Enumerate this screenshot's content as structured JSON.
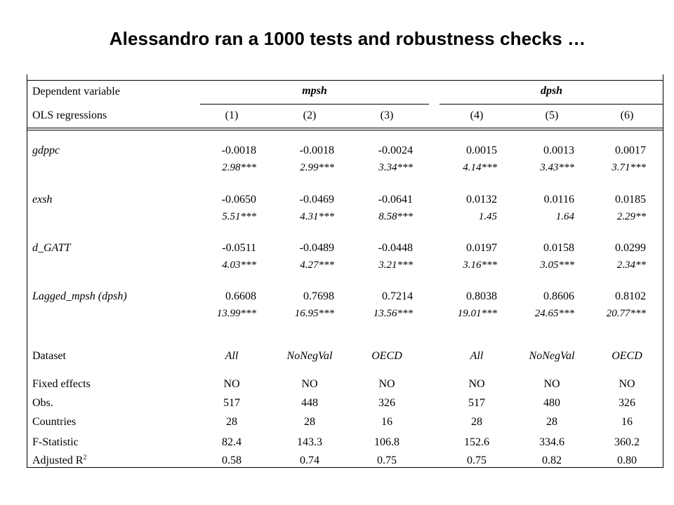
{
  "title": "Alessandro ran a 1000 tests and robustness checks …",
  "header": {
    "dependent_label": "Dependent variable",
    "group_left": "mpsh",
    "group_right": "dpsh",
    "ols_label": "OLS regressions",
    "columns": [
      "(1)",
      "(2)",
      "(3)",
      "(4)",
      "(5)",
      "(6)"
    ]
  },
  "variables": [
    {
      "name": "gdppc",
      "coef": [
        "-0.0018",
        "-0.0018",
        "-0.0024",
        "0.0015",
        "0.0013",
        "0.0017"
      ],
      "tstat": [
        "2.98***",
        "2.99***",
        "3.34***",
        "4.14***",
        "3.43***",
        "3.71***"
      ]
    },
    {
      "name": "exsh",
      "coef": [
        "-0.0650",
        "-0.0469",
        "-0.0641",
        "0.0132",
        "0.0116",
        "0.0185"
      ],
      "tstat": [
        "5.51***",
        "4.31***",
        "8.58***",
        "1.45",
        "1.64",
        "2.29**"
      ]
    },
    {
      "name": "d_GATT",
      "coef": [
        "-0.0511",
        "-0.0489",
        "-0.0448",
        "0.0197",
        "0.0158",
        "0.0299"
      ],
      "tstat": [
        "4.03***",
        "4.27***",
        "3.21***",
        "3.16***",
        "3.05***",
        "2.34**"
      ]
    },
    {
      "name": "Lagged_mpsh (dpsh)",
      "coef": [
        "0.6608",
        "0.7698",
        "0.7214",
        "0.8038",
        "0.8606",
        "0.8102"
      ],
      "tstat": [
        "13.99***",
        "16.95***",
        "13.56***",
        "19.01***",
        "24.65***",
        "20.77***"
      ]
    }
  ],
  "dataset": {
    "label": "Dataset",
    "values": [
      "All",
      "NoNegVal",
      "OECD",
      "All",
      "NoNegVal",
      "OECD"
    ]
  },
  "stats": [
    {
      "label": "Fixed effects",
      "values": [
        "NO",
        "NO",
        "NO",
        "NO",
        "NO",
        "NO"
      ]
    },
    {
      "label": "Obs.",
      "values": [
        "517",
        "448",
        "326",
        "517",
        "480",
        "326"
      ]
    },
    {
      "label": "Countries",
      "values": [
        "28",
        "28",
        "16",
        "28",
        "28",
        "16"
      ]
    },
    {
      "label": "F-Statistic",
      "values": [
        "82.4",
        "143.3",
        "106.8",
        "152.6",
        "334.6",
        "360.2"
      ]
    },
    {
      "label": "Adjusted R",
      "label_sup": "2",
      "values": [
        "0.58",
        "0.74",
        "0.75",
        "0.75",
        "0.82",
        "0.80"
      ]
    }
  ]
}
